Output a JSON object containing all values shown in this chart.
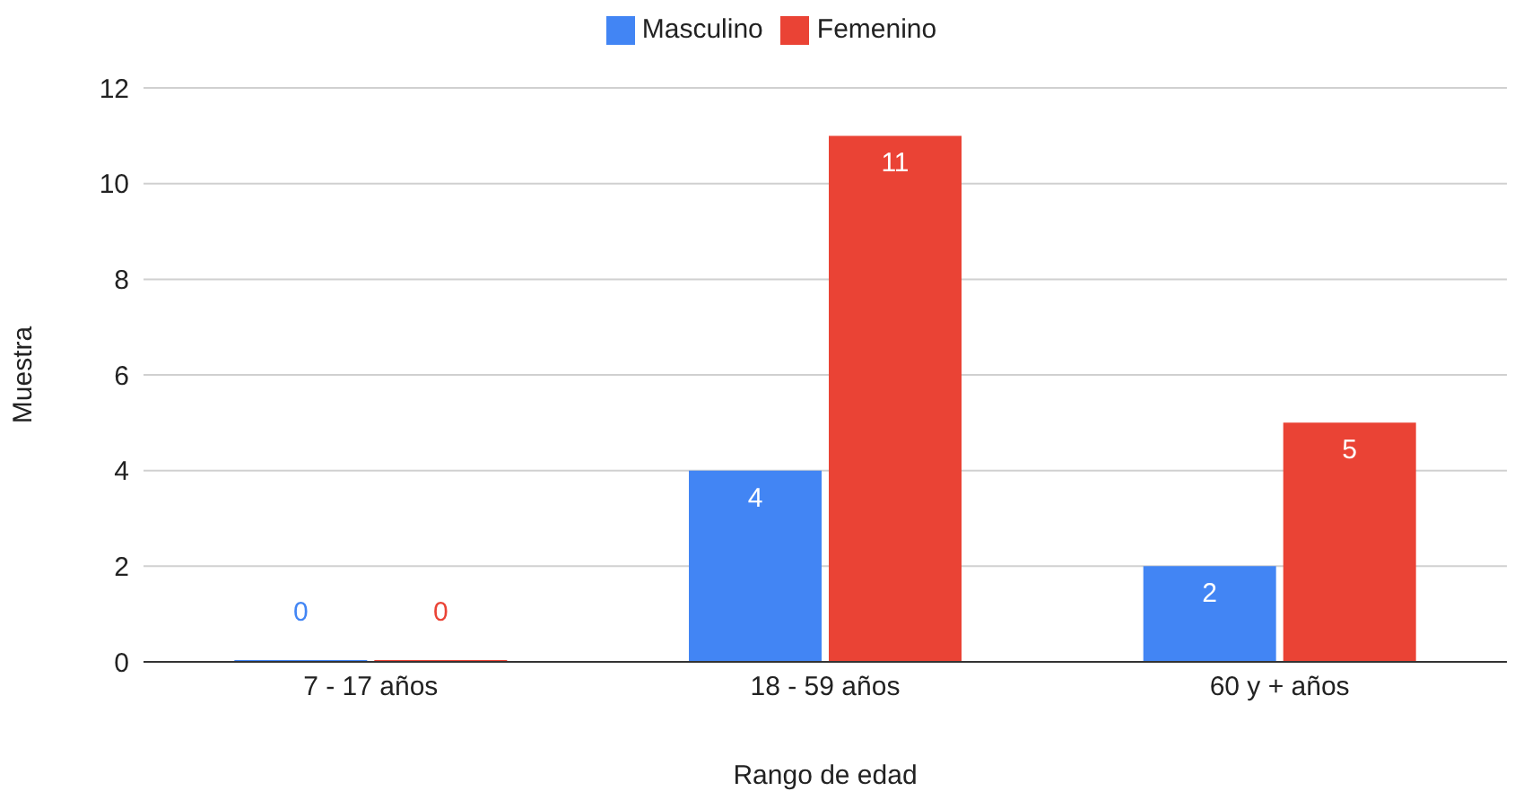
{
  "chart_data": {
    "type": "bar",
    "xlabel": "Rango de edad",
    "ylabel": "Muestra",
    "categories": [
      "7 - 17 años",
      "18 - 59 años",
      "60 y + años"
    ],
    "series": [
      {
        "name": "Masculino",
        "color": "#4285f4",
        "values": [
          0,
          4,
          2
        ]
      },
      {
        "name": "Femenino",
        "color": "#ea4335",
        "values": [
          0,
          11,
          5
        ]
      }
    ],
    "ylim": [
      0,
      12
    ],
    "yticks": [
      0,
      2,
      4,
      6,
      8,
      10,
      12
    ],
    "grid": "y",
    "legend": "top",
    "data_labels": true
  }
}
